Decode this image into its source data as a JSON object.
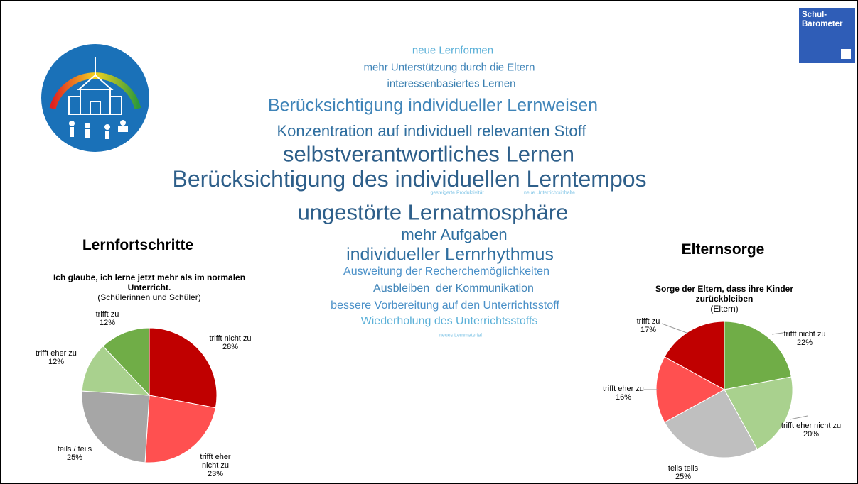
{
  "chart_data": [
    {
      "type": "pie",
      "heading": "Lernfortschritte",
      "title": "Ich glaube, ich lerne jetzt mehr als im normalen Unterricht.",
      "subtitle": "(Schülerinnen und Schüler)",
      "categories": [
        "trifft nicht zu",
        "trifft eher nicht zu",
        "teils / teils",
        "trifft eher zu",
        "trifft zu"
      ],
      "values": [
        28,
        23,
        25,
        12,
        12
      ],
      "value_labels": [
        "28%",
        "23%",
        "25%",
        "12%",
        "12%"
      ],
      "colors": [
        "#c00000",
        "#ff5050",
        "#a6a6a6",
        "#a9d18e",
        "#70ad47"
      ]
    },
    {
      "type": "pie",
      "heading": "Elternsorge",
      "title": "Sorge der Eltern, dass ihre Kinder zurückbleiben",
      "subtitle": "(Eltern)",
      "categories": [
        "trifft nicht zu",
        "trifft eher nicht zu",
        "teils teils",
        "trifft eher zu",
        "trifft zu"
      ],
      "values": [
        22,
        20,
        25,
        16,
        17
      ],
      "value_labels": [
        "22%",
        "20%",
        "25%",
        "16%",
        "17%"
      ],
      "colors": [
        "#70ad47",
        "#a9d18e",
        "#bfbfbf",
        "#ff5050",
        "#c00000"
      ]
    }
  ],
  "word_cloud": [
    "neue Lernformen",
    "mehr Unterstützung durch die Eltern",
    "interessenbasiertes Lernen",
    "Berücksichtigung individueller Lernweisen",
    "Konzentration auf individuell relevanten Stoff",
    "selbstverantwortliches Lernen",
    "Berücksichtigung des individuellen Lerntempos",
    "gesteigerte Produktivität",
    "neue Unterrichtsinhalte",
    "ungestörte Lernatmosphäre",
    "mehr Aufgaben",
    "individueller Lernrhythmus",
    "Ausweitung der Recherchemöglichkeiten",
    "Ausbleiben  der Kommunikation",
    "bessere Vorbereitung auf den Unterrichtsstoff",
    "Wiederholung des Unterrichtsstoffs",
    "neues Lernmaterial"
  ],
  "brand": {
    "label": "Schul-Barometer"
  }
}
